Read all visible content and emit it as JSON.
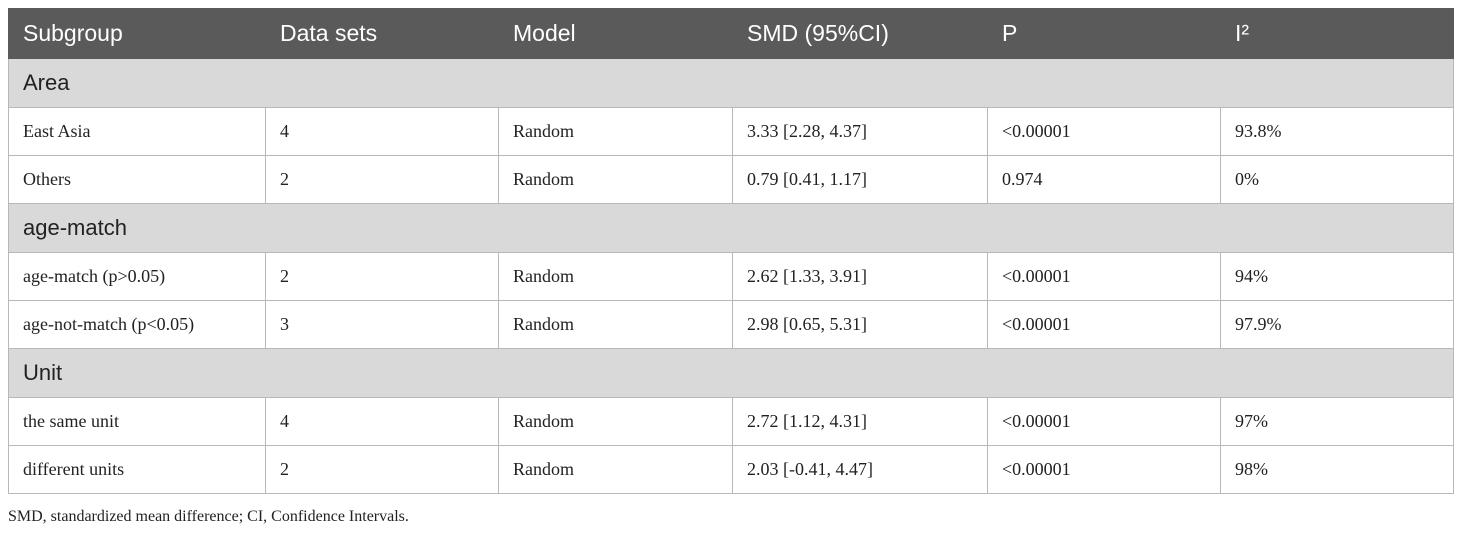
{
  "table": {
    "header": [
      "Subgroup",
      "Data sets",
      "Model",
      "SMD (95%CI)",
      "P",
      "I²"
    ],
    "sections": [
      {
        "title": "Area",
        "rows": [
          [
            "East Asia",
            "4",
            "Random",
            "3.33 [2.28, 4.37]",
            "<0.00001",
            "93.8%"
          ],
          [
            "Others",
            "2",
            "Random",
            "0.79 [0.41, 1.17]",
            "0.974",
            "0%"
          ]
        ]
      },
      {
        "title": "age-match",
        "rows": [
          [
            "age-match (p>0.05)",
            "2",
            "Random",
            "2.62 [1.33, 3.91]",
            "<0.00001",
            "94%"
          ],
          [
            "age-not-match (p<0.05)",
            "3",
            "Random",
            "2.98 [0.65, 5.31]",
            "<0.00001",
            "97.9%"
          ]
        ]
      },
      {
        "title": "Unit",
        "rows": [
          [
            "the same unit",
            "4",
            "Random",
            "2.72 [1.12, 4.31]",
            "<0.00001",
            "97%"
          ],
          [
            "different units",
            "2",
            "Random",
            "2.03 [-0.41, 4.47]",
            "<0.00001",
            "98%"
          ]
        ]
      }
    ]
  },
  "footnote": "SMD, standardized mean difference; CI, Confidence Intervals."
}
